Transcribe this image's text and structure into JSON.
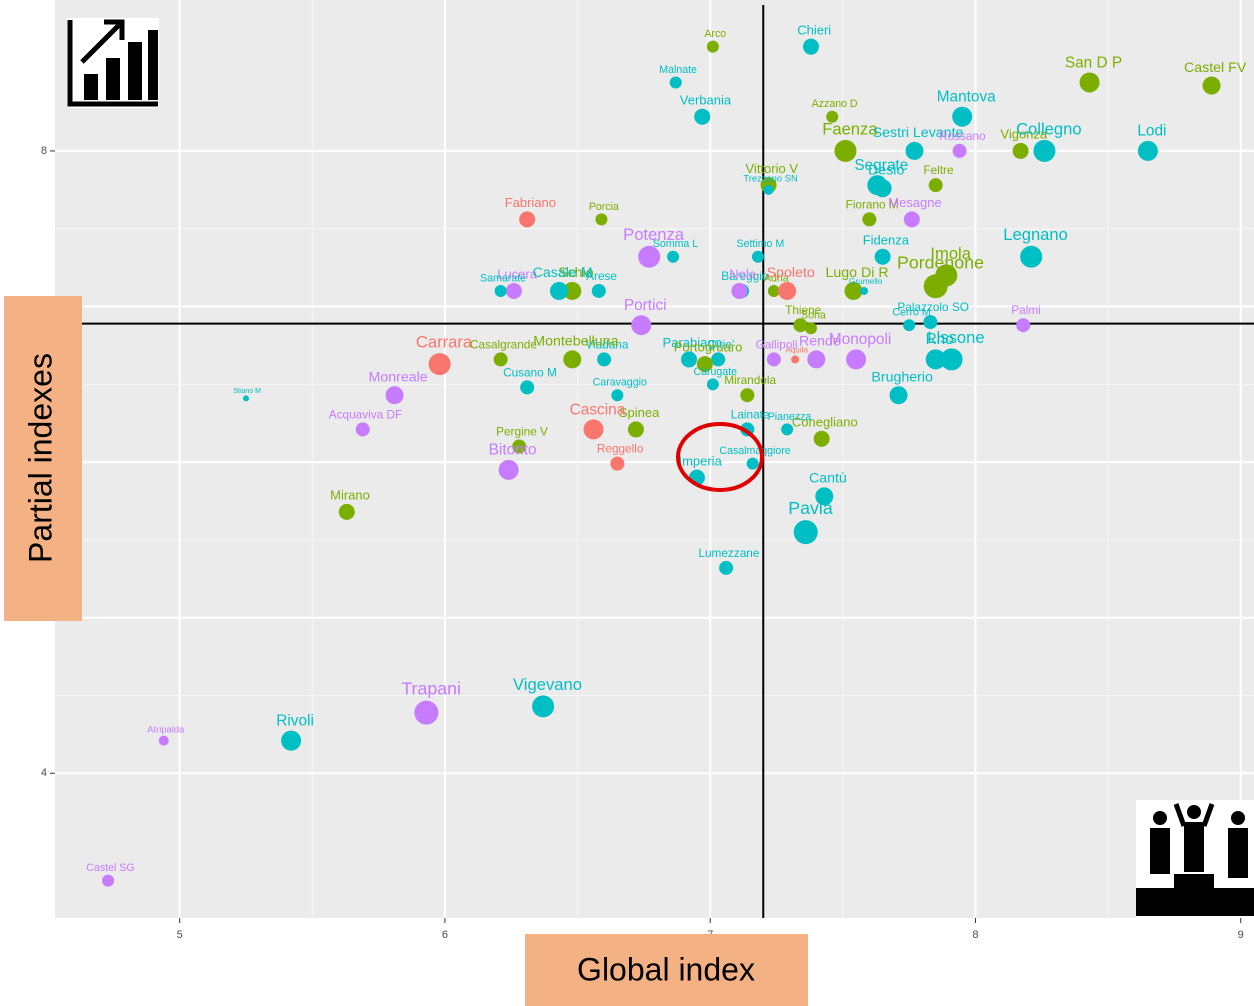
{
  "chart_data": {
    "type": "scatter",
    "x_label": "Global index",
    "y_label": "Partial indexes",
    "xlim": [
      4.53,
      9.05
    ],
    "ylim": [
      3.07,
      8.97
    ],
    "xticks": [
      5,
      6,
      7,
      8,
      9
    ],
    "yticks": [
      4,
      5,
      6,
      7,
      8
    ],
    "grid": true,
    "vline": 7.2,
    "hline": 6.89,
    "points": [
      {
        "label": "Arco",
        "x": 7.01,
        "y": 8.67,
        "size": 6,
        "color": "#7CAE00"
      },
      {
        "label": "Chieri",
        "x": 7.38,
        "y": 8.67,
        "size": 8,
        "color": "#00BFC4"
      },
      {
        "label": "Malnate",
        "x": 6.87,
        "y": 8.44,
        "size": 6,
        "color": "#00BFC4"
      },
      {
        "label": "Verbania",
        "x": 6.97,
        "y": 8.22,
        "size": 8,
        "color": "#00BFC4"
      },
      {
        "label": "Azzano D",
        "x": 7.46,
        "y": 8.22,
        "size": 6,
        "color": "#7CAE00"
      },
      {
        "label": "Mantova",
        "x": 7.95,
        "y": 8.22,
        "size": 10,
        "color": "#00BFC4"
      },
      {
        "label": "San D P",
        "x": 8.43,
        "y": 8.44,
        "size": 10,
        "color": "#7CAE00"
      },
      {
        "label": "Castel FV",
        "x": 8.89,
        "y": 8.42,
        "size": 9,
        "color": "#7CAE00"
      },
      {
        "label": "Lodi",
        "x": 8.65,
        "y": 8.0,
        "size": 10,
        "color": "#00BFC4"
      },
      {
        "label": "Faenza",
        "x": 7.51,
        "y": 8.0,
        "size": 11,
        "color": "#7CAE00"
      },
      {
        "label": "Sestri Levante",
        "x": 7.77,
        "y": 8.0,
        "size": 9,
        "color": "#00BFC4"
      },
      {
        "label": "Rossano",
        "x": 7.94,
        "y": 8.0,
        "size": 7,
        "color": "#C77CFF"
      },
      {
        "label": "Vigonza",
        "x": 8.17,
        "y": 8.0,
        "size": 8,
        "color": "#7CAE00"
      },
      {
        "label": "Collegno",
        "x": 8.26,
        "y": 8.0,
        "size": 11,
        "color": "#00BFC4"
      },
      {
        "label": "Vittorio V",
        "x": 7.22,
        "y": 7.78,
        "size": 8,
        "color": "#7CAE00"
      },
      {
        "label": "Segrate",
        "x": 7.63,
        "y": 7.78,
        "size": 10,
        "color": "#00BFC4"
      },
      {
        "label": "Feltre",
        "x": 7.85,
        "y": 7.78,
        "size": 7,
        "color": "#7CAE00"
      },
      {
        "label": "Trezzano SN",
        "x": 7.22,
        "y": 7.75,
        "size": 5,
        "color": "#00BFC4"
      },
      {
        "label": "Desio",
        "x": 7.65,
        "y": 7.76,
        "size": 9,
        "color": "#00BFC4"
      },
      {
        "label": "Fabriano",
        "x": 6.31,
        "y": 7.56,
        "size": 8,
        "color": "#F8766D"
      },
      {
        "label": "Porcia",
        "x": 6.59,
        "y": 7.56,
        "size": 6,
        "color": "#7CAE00"
      },
      {
        "label": "Fiorano M",
        "x": 7.6,
        "y": 7.56,
        "size": 7,
        "color": "#7CAE00"
      },
      {
        "label": "Mesagne",
        "x": 7.76,
        "y": 7.56,
        "size": 8,
        "color": "#C77CFF"
      },
      {
        "label": "Potenza",
        "x": 6.77,
        "y": 7.32,
        "size": 11,
        "color": "#C77CFF"
      },
      {
        "label": "Somma L",
        "x": 6.86,
        "y": 7.32,
        "size": 6,
        "color": "#00BFC4"
      },
      {
        "label": "Settimo M",
        "x": 7.18,
        "y": 7.32,
        "size": 6,
        "color": "#00BFC4"
      },
      {
        "label": "Fidenza",
        "x": 7.65,
        "y": 7.32,
        "size": 8,
        "color": "#00BFC4"
      },
      {
        "label": "Imola",
        "x": 7.89,
        "y": 7.2,
        "size": 11,
        "color": "#7CAE00"
      },
      {
        "label": "Legnano",
        "x": 8.21,
        "y": 7.32,
        "size": 11,
        "color": "#00BFC4"
      },
      {
        "label": "Lucera",
        "x": 6.26,
        "y": 7.1,
        "size": 8,
        "color": "#C77CFF"
      },
      {
        "label": "Schio",
        "x": 6.48,
        "y": 7.1,
        "size": 9,
        "color": "#7CAE00"
      },
      {
        "label": "Arese",
        "x": 6.58,
        "y": 7.1,
        "size": 7,
        "color": "#00BFC4"
      },
      {
        "label": "Casale M",
        "x": 6.43,
        "y": 7.1,
        "size": 9,
        "color": "#00BFC4"
      },
      {
        "label": "Samarate",
        "x": 6.21,
        "y": 7.1,
        "size": 6,
        "color": "#00BFC4"
      },
      {
        "label": "Bareggio",
        "x": 7.12,
        "y": 7.1,
        "size": 7,
        "color": "#00BFC4"
      },
      {
        "label": "Adria",
        "x": 7.24,
        "y": 7.1,
        "size": 6,
        "color": "#7CAE00"
      },
      {
        "label": "Nola",
        "x": 7.11,
        "y": 7.1,
        "size": 8,
        "color": "#C77CFF"
      },
      {
        "label": "Lugo Di R",
        "x": 7.54,
        "y": 7.1,
        "size": 9,
        "color": "#7CAE00"
      },
      {
        "label": "Grumello",
        "x": 7.58,
        "y": 7.1,
        "size": 4,
        "color": "#00BFC4"
      },
      {
        "label": "Pordenone",
        "x": 7.85,
        "y": 7.13,
        "size": 12,
        "color": "#7CAE00"
      },
      {
        "label": "Spoleto",
        "x": 7.29,
        "y": 7.1,
        "size": 9,
        "color": "#F8766D"
      },
      {
        "label": "Portici",
        "x": 6.74,
        "y": 6.88,
        "size": 10,
        "color": "#C77CFF"
      },
      {
        "label": "Thiene",
        "x": 7.34,
        "y": 6.88,
        "size": 7,
        "color": "#7CAE00"
      },
      {
        "label": "Sona",
        "x": 7.38,
        "y": 6.86,
        "size": 6,
        "color": "#7CAE00"
      },
      {
        "label": "Cerro M",
        "x": 7.75,
        "y": 6.88,
        "size": 6,
        "color": "#00BFC4"
      },
      {
        "label": "Palazzolo SO",
        "x": 7.83,
        "y": 6.9,
        "size": 7,
        "color": "#00BFC4"
      },
      {
        "label": "Palmi",
        "x": 8.18,
        "y": 6.88,
        "size": 7,
        "color": "#C77CFF"
      },
      {
        "label": "Casalgrande",
        "x": 6.21,
        "y": 6.66,
        "size": 7,
        "color": "#7CAE00"
      },
      {
        "label": "Carrara",
        "x": 5.98,
        "y": 6.63,
        "size": 11,
        "color": "#F8766D"
      },
      {
        "label": "Viadana",
        "x": 6.6,
        "y": 6.66,
        "size": 7,
        "color": "#00BFC4"
      },
      {
        "label": "Montebelluna",
        "x": 6.48,
        "y": 6.66,
        "size": 9,
        "color": "#7CAE00"
      },
      {
        "label": "Cirie'",
        "x": 7.03,
        "y": 6.66,
        "size": 7,
        "color": "#00BFC4"
      },
      {
        "label": "Parabiago",
        "x": 6.92,
        "y": 6.66,
        "size": 8,
        "color": "#00BFC4"
      },
      {
        "label": "Portogruaro",
        "x": 6.98,
        "y": 6.63,
        "size": 8,
        "color": "#7CAE00"
      },
      {
        "label": "Aquila",
        "x": 7.32,
        "y": 6.66,
        "size": 4,
        "color": "#F8766D"
      },
      {
        "label": "Gallipoli",
        "x": 7.24,
        "y": 6.66,
        "size": 7,
        "color": "#C77CFF"
      },
      {
        "label": "Monopoli",
        "x": 7.55,
        "y": 6.66,
        "size": 10,
        "color": "#C77CFF"
      },
      {
        "label": "Rende",
        "x": 7.4,
        "y": 6.66,
        "size": 9,
        "color": "#C77CFF"
      },
      {
        "label": "Lissone",
        "x": 7.91,
        "y": 6.66,
        "size": 11,
        "color": "#00BFC4"
      },
      {
        "label": "Rho",
        "x": 7.85,
        "y": 6.66,
        "size": 10,
        "color": "#00BFC4"
      },
      {
        "label": "Carugate",
        "x": 7.01,
        "y": 6.5,
        "size": 6,
        "color": "#00BFC4"
      },
      {
        "label": "Cusano M",
        "x": 6.31,
        "y": 6.48,
        "size": 7,
        "color": "#00BFC4"
      },
      {
        "label": "Caravaggio",
        "x": 6.65,
        "y": 6.43,
        "size": 6,
        "color": "#00BFC4"
      },
      {
        "label": "Monreale",
        "x": 5.81,
        "y": 6.43,
        "size": 9,
        "color": "#C77CFF"
      },
      {
        "label": "Brugherio",
        "x": 7.71,
        "y": 6.43,
        "size": 9,
        "color": "#00BFC4"
      },
      {
        "label": "Mirandola",
        "x": 7.14,
        "y": 6.43,
        "size": 7,
        "color": "#7CAE00"
      },
      {
        "label": "Stiano M",
        "x": 5.25,
        "y": 6.41,
        "size": 3,
        "color": "#00BFC4"
      },
      {
        "label": "Spinea",
        "x": 6.72,
        "y": 6.21,
        "size": 8,
        "color": "#7CAE00"
      },
      {
        "label": "Cascina",
        "x": 6.56,
        "y": 6.21,
        "size": 10,
        "color": "#F8766D"
      },
      {
        "label": "Acquaviva DF",
        "x": 5.69,
        "y": 6.21,
        "size": 7,
        "color": "#C77CFF"
      },
      {
        "label": "Lainate",
        "x": 7.14,
        "y": 6.21,
        "size": 7,
        "color": "#00BFC4"
      },
      {
        "label": "Pianezza",
        "x": 7.29,
        "y": 6.21,
        "size": 6,
        "color": "#00BFC4"
      },
      {
        "label": "Conegliano",
        "x": 7.42,
        "y": 6.15,
        "size": 8,
        "color": "#7CAE00"
      },
      {
        "label": "Pergine V",
        "x": 6.28,
        "y": 6.1,
        "size": 7,
        "color": "#7CAE00"
      },
      {
        "label": "Reggello",
        "x": 6.65,
        "y": 5.99,
        "size": 7,
        "color": "#F8766D"
      },
      {
        "label": "Bitonto",
        "x": 6.24,
        "y": 5.95,
        "size": 10,
        "color": "#C77CFF"
      },
      {
        "label": "Casalmaggiore",
        "x": 7.16,
        "y": 5.99,
        "size": 6,
        "color": "#00BFC4"
      },
      {
        "label": "Imperia",
        "x": 6.95,
        "y": 5.9,
        "size": 8,
        "color": "#00BFC4"
      },
      {
        "label": "Cantù",
        "x": 7.43,
        "y": 5.78,
        "size": 9,
        "color": "#00BFC4"
      },
      {
        "label": "Mirano",
        "x": 5.63,
        "y": 5.68,
        "size": 8,
        "color": "#7CAE00"
      },
      {
        "label": "Pavia",
        "x": 7.36,
        "y": 5.55,
        "size": 12,
        "color": "#00BFC4"
      },
      {
        "label": "Lumezzane",
        "x": 7.06,
        "y": 5.32,
        "size": 7,
        "color": "#00BFC4"
      },
      {
        "label": "Vigevano",
        "x": 6.37,
        "y": 4.43,
        "size": 11,
        "color": "#00BFC4"
      },
      {
        "label": "Trapani",
        "x": 5.93,
        "y": 4.39,
        "size": 12,
        "color": "#C77CFF"
      },
      {
        "label": "Rivoli",
        "x": 5.42,
        "y": 4.21,
        "size": 10,
        "color": "#00BFC4"
      },
      {
        "label": "Atripalda",
        "x": 4.94,
        "y": 4.21,
        "size": 5,
        "color": "#C77CFF"
      },
      {
        "label": "Castel SG",
        "x": 4.73,
        "y": 3.31,
        "size": 6,
        "color": "#C77CFF"
      }
    ]
  }
}
